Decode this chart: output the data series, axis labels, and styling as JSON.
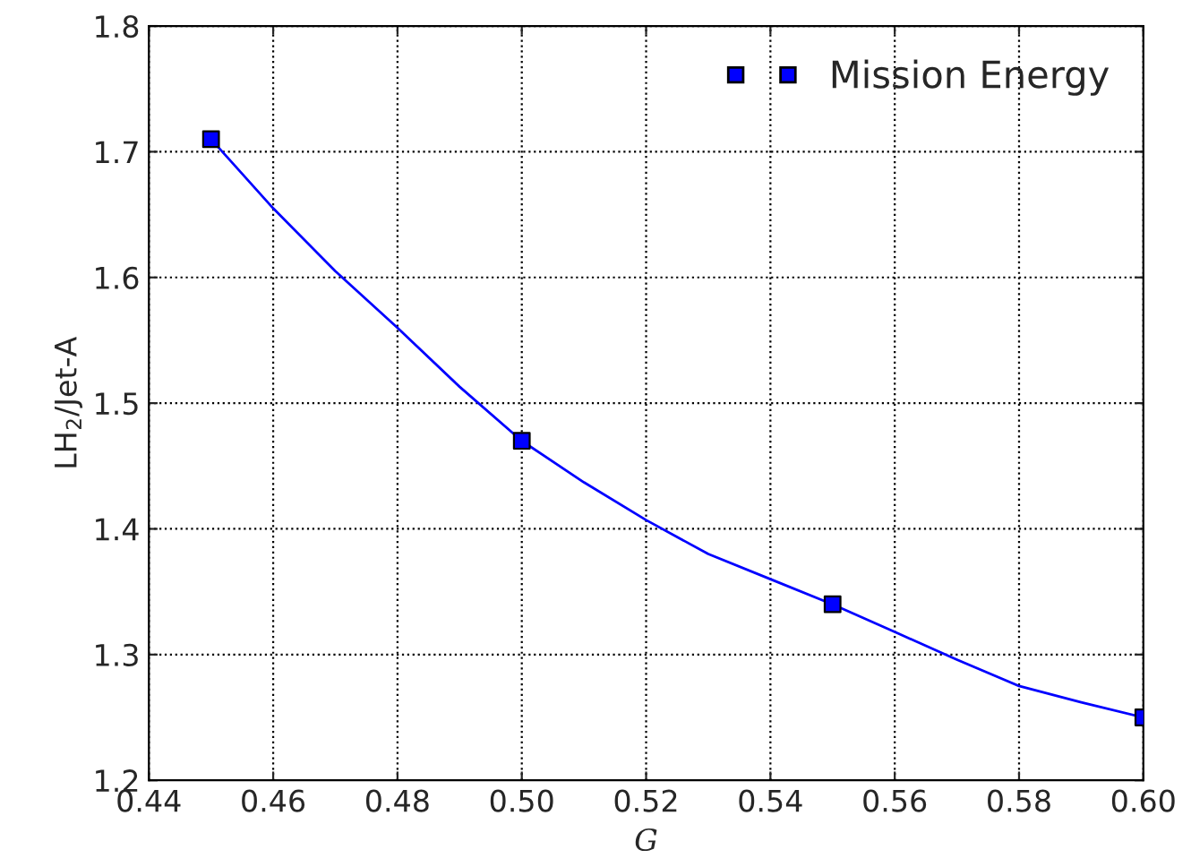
{
  "chart_data": {
    "type": "scatter",
    "xlabel": "G",
    "ylabel": "LH$_{2}$/Jet-A",
    "series": [
      {
        "name": "Mission Energy",
        "color": "#0000ff",
        "marker": "square",
        "x": [
          0.45,
          0.5,
          0.55,
          0.6
        ],
        "values": [
          1.71,
          1.47,
          1.34,
          1.25
        ]
      },
      {
        "type": "line",
        "color": "#0000ff",
        "x": [
          0.45,
          0.46,
          0.47,
          0.48,
          0.49,
          0.5,
          0.51,
          0.52,
          0.53,
          0.54,
          0.55,
          0.56,
          0.57,
          0.58,
          0.59,
          0.6
        ],
        "values": [
          1.71,
          1.655,
          1.605,
          1.56,
          1.513,
          1.47,
          1.437,
          1.407,
          1.38,
          1.36,
          1.34,
          1.318,
          1.296,
          1.275,
          1.262,
          1.25
        ]
      }
    ],
    "xlim": [
      0.44,
      0.6
    ],
    "xticks": [
      {
        "value": 0.44,
        "label": "0.44"
      },
      {
        "value": 0.46,
        "label": "0.46"
      },
      {
        "value": 0.48,
        "label": "0.48"
      },
      {
        "value": 0.5,
        "label": "0.50"
      },
      {
        "value": 0.52,
        "label": "0.52"
      },
      {
        "value": 0.54,
        "label": "0.54"
      },
      {
        "value": 0.56,
        "label": "0.56"
      },
      {
        "value": 0.58,
        "label": "0.58"
      },
      {
        "value": 0.6,
        "label": "0.60"
      }
    ],
    "ylim": [
      1.2,
      1.8
    ],
    "yticks": [
      1.2,
      1.3,
      1.4,
      1.5,
      1.6,
      1.7,
      1.8
    ],
    "grid": true,
    "legend": "top right"
  }
}
